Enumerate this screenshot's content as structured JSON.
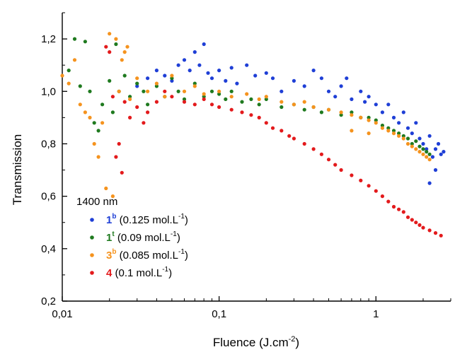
{
  "chart_data": {
    "type": "scatter",
    "xscale": "log",
    "xlim": [
      0.01,
      3
    ],
    "ylim": [
      0.2,
      1.3
    ],
    "xticks": [
      0.01,
      0.1,
      1
    ],
    "xtick_labels": [
      "0,01",
      "0,1",
      "1"
    ],
    "yticks": [
      0.2,
      0.4,
      0.6,
      0.8,
      1.0,
      1.2
    ],
    "ytick_labels": [
      "0,2",
      "0,4",
      "0,6",
      "0,8",
      "1,0",
      "1,2"
    ],
    "xlabel": {
      "base": "Fluence (J.cm",
      "sup": "-2",
      "close": ")"
    },
    "ylabel": "Transmission",
    "grid": false,
    "legend_placement": "bottom-left",
    "legend_title": "1400 nm",
    "series": [
      {
        "name": "1b (0.125 mol.L-1)",
        "label_num": "1",
        "label_sup": "b",
        "label_conc": " (0.125 mol.L",
        "label_conc_sup": "-1",
        "label_close": ")",
        "color": "#1f3fd6",
        "points": [
          [
            0.03,
            1.02
          ],
          [
            0.035,
            1.05
          ],
          [
            0.04,
            1.08
          ],
          [
            0.045,
            1.06
          ],
          [
            0.05,
            1.04
          ],
          [
            0.055,
            1.1
          ],
          [
            0.06,
            1.12
          ],
          [
            0.065,
            1.08
          ],
          [
            0.07,
            1.15
          ],
          [
            0.075,
            1.1
          ],
          [
            0.08,
            1.18
          ],
          [
            0.085,
            1.07
          ],
          [
            0.09,
            1.05
          ],
          [
            0.1,
            1.08
          ],
          [
            0.11,
            1.04
          ],
          [
            0.12,
            1.09
          ],
          [
            0.13,
            1.03
          ],
          [
            0.15,
            1.1
          ],
          [
            0.17,
            1.06
          ],
          [
            0.2,
            1.07
          ],
          [
            0.22,
            1.05
          ],
          [
            0.25,
            1.0
          ],
          [
            0.3,
            1.04
          ],
          [
            0.35,
            1.02
          ],
          [
            0.4,
            1.08
          ],
          [
            0.45,
            1.05
          ],
          [
            0.5,
            1.0
          ],
          [
            0.55,
            0.98
          ],
          [
            0.6,
            1.02
          ],
          [
            0.65,
            1.05
          ],
          [
            0.7,
            0.97
          ],
          [
            0.8,
            1.0
          ],
          [
            0.85,
            0.96
          ],
          [
            0.9,
            0.98
          ],
          [
            1.0,
            0.95
          ],
          [
            1.1,
            0.92
          ],
          [
            1.2,
            0.95
          ],
          [
            1.3,
            0.9
          ],
          [
            1.4,
            0.88
          ],
          [
            1.5,
            0.92
          ],
          [
            1.6,
            0.86
          ],
          [
            1.7,
            0.84
          ],
          [
            1.8,
            0.88
          ],
          [
            1.9,
            0.82
          ],
          [
            2.0,
            0.8
          ],
          [
            2.1,
            0.78
          ],
          [
            2.2,
            0.83
          ],
          [
            2.3,
            0.75
          ],
          [
            2.4,
            0.78
          ],
          [
            2.5,
            0.8
          ],
          [
            2.6,
            0.76
          ],
          [
            2.7,
            0.77
          ],
          [
            2.2,
            0.65
          ],
          [
            2.4,
            0.7
          ]
        ]
      },
      {
        "name": "1t (0.09 mol.L-1)",
        "label_num": "1",
        "label_sup": "t",
        "label_conc": " (0.09 mol.L",
        "label_conc_sup": "-1",
        "label_close": ")",
        "color": "#1f7a1f",
        "points": [
          [
            0.011,
            1.08
          ],
          [
            0.012,
            1.2
          ],
          [
            0.013,
            1.02
          ],
          [
            0.014,
            1.19
          ],
          [
            0.015,
            1.0
          ],
          [
            0.016,
            0.88
          ],
          [
            0.017,
            0.85
          ],
          [
            0.018,
            0.95
          ],
          [
            0.02,
            1.04
          ],
          [
            0.021,
            0.92
          ],
          [
            0.022,
            1.18
          ],
          [
            0.023,
            1.0
          ],
          [
            0.025,
            1.06
          ],
          [
            0.027,
            0.98
          ],
          [
            0.03,
            1.03
          ],
          [
            0.033,
            1.0
          ],
          [
            0.035,
            0.95
          ],
          [
            0.04,
            1.02
          ],
          [
            0.045,
            0.98
          ],
          [
            0.05,
            1.05
          ],
          [
            0.055,
            1.0
          ],
          [
            0.06,
            0.97
          ],
          [
            0.07,
            1.03
          ],
          [
            0.08,
            0.98
          ],
          [
            0.09,
            1.0
          ],
          [
            0.1,
            0.99
          ],
          [
            0.11,
            0.97
          ],
          [
            0.12,
            1.0
          ],
          [
            0.14,
            0.96
          ],
          [
            0.16,
            0.97
          ],
          [
            0.18,
            0.95
          ],
          [
            0.2,
            0.97
          ],
          [
            0.25,
            0.94
          ],
          [
            0.3,
            0.95
          ],
          [
            0.35,
            0.93
          ],
          [
            0.4,
            0.94
          ],
          [
            0.45,
            0.92
          ],
          [
            0.5,
            0.93
          ],
          [
            0.6,
            0.91
          ],
          [
            0.7,
            0.92
          ],
          [
            0.8,
            0.9
          ],
          [
            0.9,
            0.9
          ],
          [
            1.0,
            0.89
          ],
          [
            1.1,
            0.87
          ],
          [
            1.2,
            0.86
          ],
          [
            1.3,
            0.85
          ],
          [
            1.4,
            0.84
          ],
          [
            1.5,
            0.83
          ],
          [
            1.6,
            0.82
          ],
          [
            1.7,
            0.8
          ],
          [
            1.8,
            0.81
          ],
          [
            1.9,
            0.79
          ],
          [
            2.0,
            0.78
          ],
          [
            2.1,
            0.77
          ],
          [
            2.2,
            0.76
          ]
        ]
      },
      {
        "name": "3b (0.085 mol.L-1)",
        "label_num": "3",
        "label_sup": "b",
        "label_conc": " (0.085 mol.L",
        "label_conc_sup": "-1",
        "label_close": ")",
        "color": "#f5931e",
        "points": [
          [
            0.01,
            1.06
          ],
          [
            0.011,
            1.03
          ],
          [
            0.012,
            1.12
          ],
          [
            0.013,
            0.95
          ],
          [
            0.014,
            0.92
          ],
          [
            0.015,
            0.9
          ],
          [
            0.016,
            0.8
          ],
          [
            0.017,
            0.75
          ],
          [
            0.018,
            0.88
          ],
          [
            0.019,
            0.63
          ],
          [
            0.02,
            1.22
          ],
          [
            0.021,
            0.6
          ],
          [
            0.022,
            1.2
          ],
          [
            0.023,
            1.0
          ],
          [
            0.024,
            1.12
          ],
          [
            0.025,
            1.15
          ],
          [
            0.026,
            1.17
          ],
          [
            0.027,
            0.97
          ],
          [
            0.03,
            1.05
          ],
          [
            0.035,
            1.0
          ],
          [
            0.04,
            1.03
          ],
          [
            0.045,
            0.98
          ],
          [
            0.05,
            1.06
          ],
          [
            0.06,
            1.0
          ],
          [
            0.07,
            1.02
          ],
          [
            0.08,
            0.99
          ],
          [
            0.1,
            1.0
          ],
          [
            0.12,
            0.98
          ],
          [
            0.15,
            0.99
          ],
          [
            0.18,
            0.97
          ],
          [
            0.2,
            0.98
          ],
          [
            0.25,
            0.96
          ],
          [
            0.3,
            0.95
          ],
          [
            0.35,
            0.96
          ],
          [
            0.4,
            0.94
          ],
          [
            0.5,
            0.93
          ],
          [
            0.6,
            0.92
          ],
          [
            0.7,
            0.91
          ],
          [
            0.8,
            0.9
          ],
          [
            0.9,
            0.89
          ],
          [
            1.0,
            0.88
          ],
          [
            1.1,
            0.86
          ],
          [
            1.2,
            0.85
          ],
          [
            1.3,
            0.84
          ],
          [
            1.4,
            0.83
          ],
          [
            1.5,
            0.82
          ],
          [
            1.6,
            0.8
          ],
          [
            1.7,
            0.79
          ],
          [
            1.8,
            0.78
          ],
          [
            1.9,
            0.77
          ],
          [
            2.0,
            0.76
          ],
          [
            2.1,
            0.75
          ],
          [
            2.2,
            0.74
          ],
          [
            0.7,
            0.85
          ],
          [
            0.9,
            0.84
          ]
        ]
      },
      {
        "name": "4 (0.1 mol.L-1)",
        "label_num": "4",
        "label_sup": "",
        "label_conc": " (0.1 mol.L",
        "label_conc_sup": "-1",
        "label_close": ")",
        "color": "#e31a1c",
        "points": [
          [
            0.019,
            1.17
          ],
          [
            0.02,
            1.15
          ],
          [
            0.021,
            0.98
          ],
          [
            0.022,
            0.75
          ],
          [
            0.023,
            0.8
          ],
          [
            0.024,
            0.69
          ],
          [
            0.025,
            0.96
          ],
          [
            0.027,
            0.9
          ],
          [
            0.03,
            0.94
          ],
          [
            0.033,
            0.88
          ],
          [
            0.035,
            0.92
          ],
          [
            0.04,
            0.96
          ],
          [
            0.045,
            1.0
          ],
          [
            0.05,
            0.98
          ],
          [
            0.06,
            0.96
          ],
          [
            0.07,
            0.95
          ],
          [
            0.08,
            0.97
          ],
          [
            0.09,
            0.95
          ],
          [
            0.1,
            0.94
          ],
          [
            0.12,
            0.93
          ],
          [
            0.14,
            0.92
          ],
          [
            0.16,
            0.91
          ],
          [
            0.18,
            0.9
          ],
          [
            0.2,
            0.88
          ],
          [
            0.22,
            0.86
          ],
          [
            0.25,
            0.85
          ],
          [
            0.28,
            0.83
          ],
          [
            0.3,
            0.82
          ],
          [
            0.35,
            0.8
          ],
          [
            0.4,
            0.78
          ],
          [
            0.45,
            0.76
          ],
          [
            0.5,
            0.74
          ],
          [
            0.55,
            0.72
          ],
          [
            0.6,
            0.7
          ],
          [
            0.7,
            0.68
          ],
          [
            0.8,
            0.66
          ],
          [
            0.9,
            0.64
          ],
          [
            1.0,
            0.62
          ],
          [
            1.1,
            0.6
          ],
          [
            1.2,
            0.58
          ],
          [
            1.3,
            0.56
          ],
          [
            1.4,
            0.55
          ],
          [
            1.5,
            0.54
          ],
          [
            1.6,
            0.52
          ],
          [
            1.7,
            0.51
          ],
          [
            1.8,
            0.5
          ],
          [
            1.9,
            0.49
          ],
          [
            2.0,
            0.48
          ],
          [
            2.2,
            0.47
          ],
          [
            2.4,
            0.46
          ],
          [
            2.6,
            0.45
          ]
        ]
      }
    ]
  }
}
